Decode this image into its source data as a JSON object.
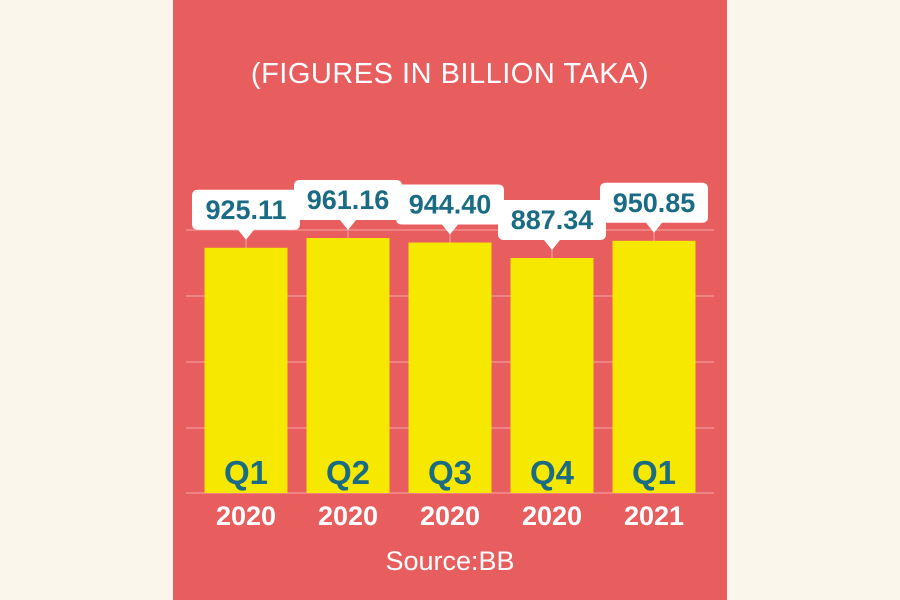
{
  "chart_data": {
    "type": "bar",
    "title": "(FIGURES IN BILLION TAKA)",
    "source": "Source:BB",
    "quarters": [
      "Q1",
      "Q2",
      "Q3",
      "Q4",
      "Q1"
    ],
    "years": [
      "2020",
      "2020",
      "2020",
      "2020",
      "2021"
    ],
    "values": [
      925.11,
      961.16,
      944.4,
      887.34,
      950.85
    ],
    "value_labels": [
      "925.11",
      "961.16",
      "944.40",
      "887.34",
      "950.85"
    ],
    "grid": true,
    "colors": {
      "background": "#e85d5e",
      "bar": "#f7e800",
      "label_text": "#1a6b84",
      "callout": "#ffffff",
      "text": "#ffffff"
    }
  }
}
